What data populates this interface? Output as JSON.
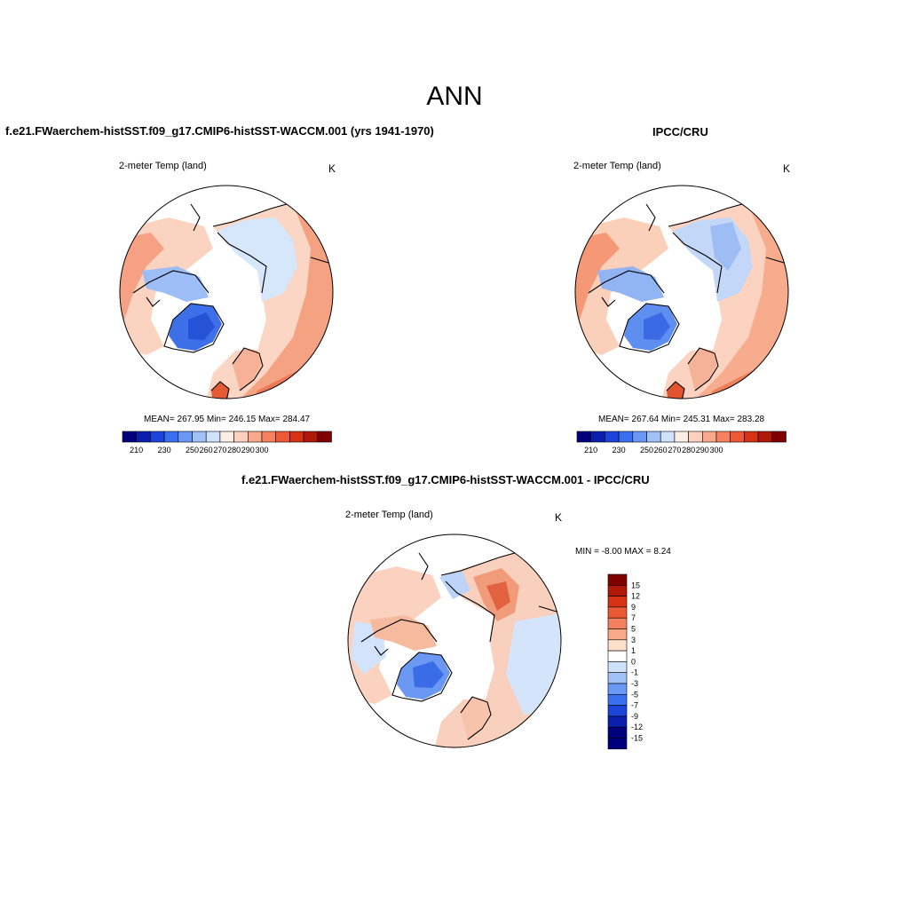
{
  "main_title": "ANN",
  "panels": [
    {
      "title": "f.e21.FWaerchem-histSST.f09_g17.CMIP6-histSST-WACCM.001 (yrs 1941-1970)",
      "variable": "2-meter Temp (land)",
      "units": "K",
      "stats": "MEAN= 267.95  Min= 246.15  Max= 284.47"
    },
    {
      "title": "IPCC/CRU",
      "variable": "2-meter Temp (land)",
      "units": "K",
      "stats": "MEAN= 267.64  Min= 245.31  Max= 283.28"
    },
    {
      "title": "f.e21.FWaerchem-histSST.f09_g17.CMIP6-histSST-WACCM.001 - IPCC/CRU",
      "variable": "2-meter Temp (land)",
      "units": "K",
      "stats": "MIN =  -8.00 MAX =   8.24"
    }
  ],
  "abs_colorbar": {
    "labels": [
      "210",
      "230",
      "250",
      "260",
      "270",
      "280",
      "290",
      "300"
    ],
    "colors": [
      "#00007f",
      "#0a1fad",
      "#1a45d8",
      "#3a6ff0",
      "#6a98f5",
      "#a0c0f8",
      "#cfe2fb",
      "#fdeee4",
      "#fcd0bc",
      "#f9a88a",
      "#f58160",
      "#ec5a35",
      "#d83215",
      "#b01807",
      "#800000"
    ]
  },
  "diff_colorbar": {
    "labels": [
      "15",
      "12",
      "9",
      "7",
      "5",
      "3",
      "1",
      "0",
      "-1",
      "-3",
      "-5",
      "-7",
      "-9",
      "-12",
      "-15"
    ],
    "colors": [
      "#800000",
      "#b01807",
      "#d83215",
      "#ec5a35",
      "#f58160",
      "#f9a88a",
      "#fde0cc",
      "#ffffff",
      "#cfe2fb",
      "#a0c0f8",
      "#6a98f5",
      "#3a6ff0",
      "#1a45d8",
      "#0a1fad",
      "#00007f"
    ]
  }
}
